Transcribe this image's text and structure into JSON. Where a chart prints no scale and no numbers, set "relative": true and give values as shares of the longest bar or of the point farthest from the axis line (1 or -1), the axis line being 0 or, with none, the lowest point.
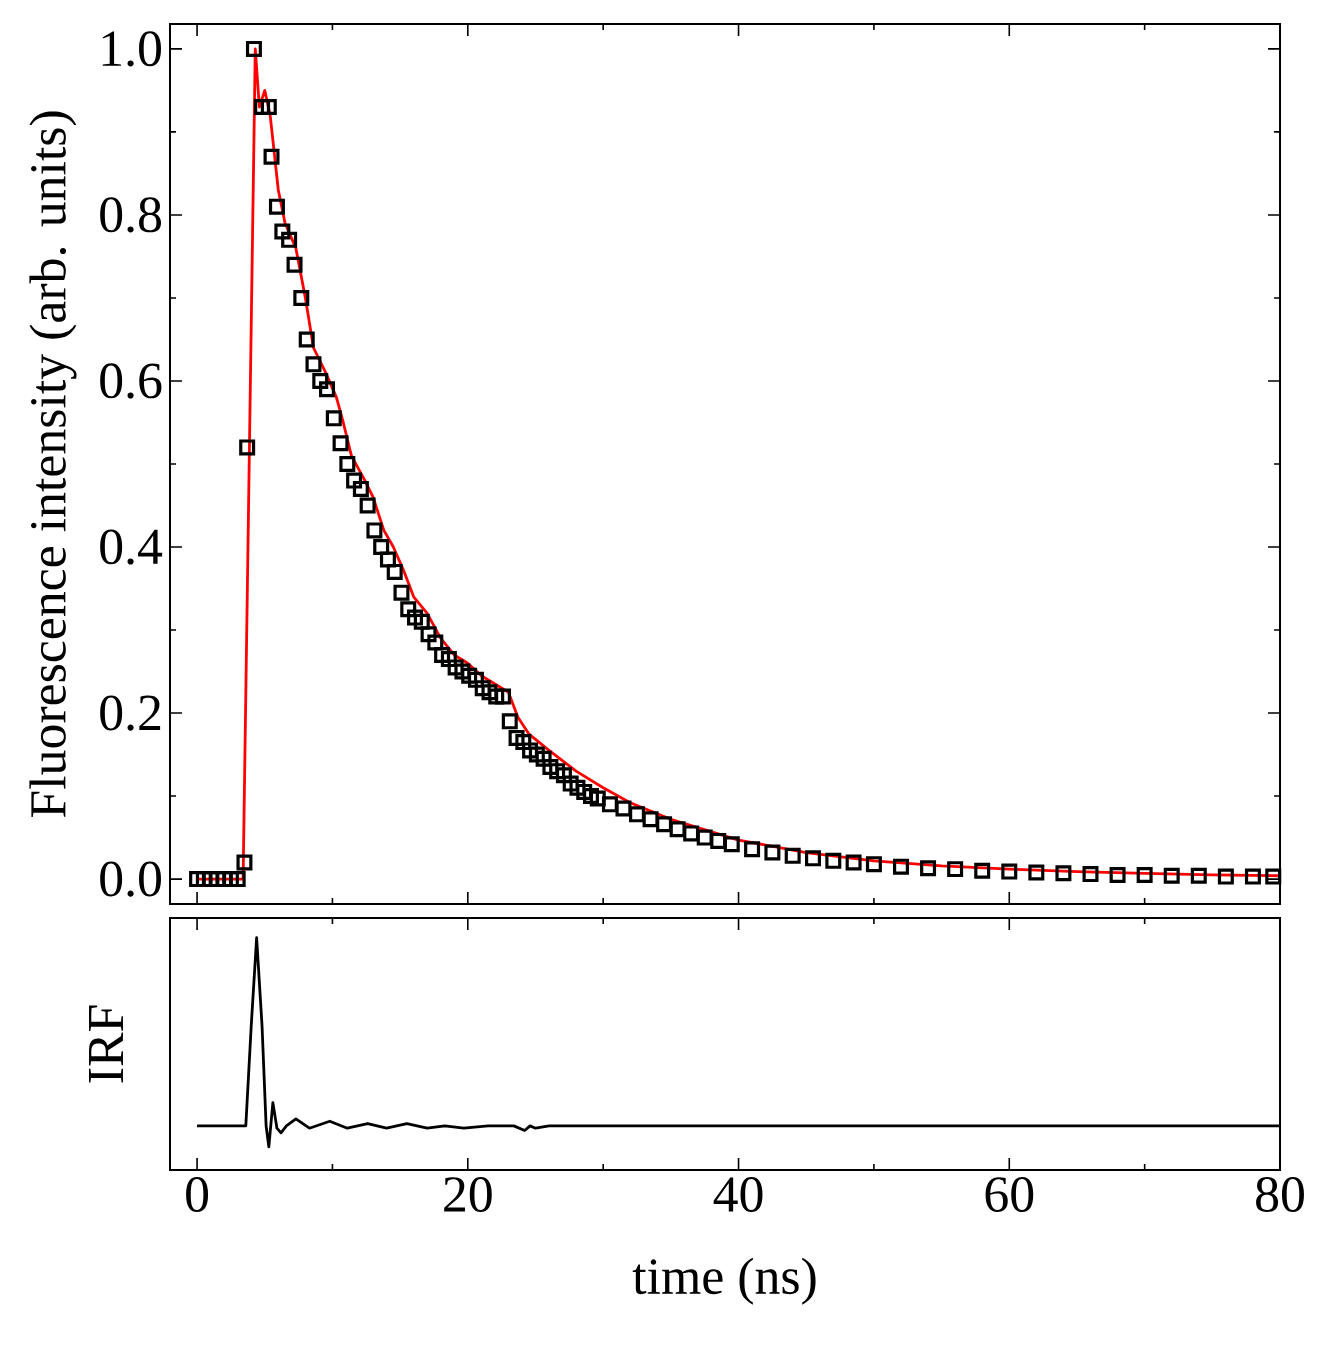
{
  "chart_data": [
    {
      "type": "scatter",
      "ylabel": "Fluorescence intensity (arb. units)",
      "xlim": [
        -2,
        80
      ],
      "xticks": [
        0,
        20,
        40,
        60,
        80
      ],
      "ylim": [
        -0.03,
        1.03
      ],
      "yticks": [
        {
          "value": 0,
          "label": "0.0"
        },
        {
          "value": 0.2,
          "label": "0.2"
        },
        {
          "value": 0.4,
          "label": "0.4"
        },
        {
          "value": 0.6,
          "label": "0.6"
        },
        {
          "value": 0.8,
          "label": "0.8"
        },
        {
          "value": 1.0,
          "label": "1.0"
        }
      ],
      "tick_labels": "y",
      "series": [
        {
          "type": "scatter",
          "color": "#000000",
          "marker": "square",
          "x": [
            0,
            0.5,
            1,
            1.5,
            2,
            2.5,
            3,
            3.5,
            3.7,
            4.2,
            4.8,
            5.3,
            5.5,
            5.9,
            6.3,
            6.8,
            7.2,
            7.7,
            8.1,
            8.6,
            9.1,
            9.6,
            10.1,
            10.6,
            11.1,
            11.6,
            12.1,
            12.6,
            13.1,
            13.6,
            14.1,
            14.6,
            15.1,
            15.6,
            16.1,
            16.6,
            17.1,
            17.6,
            18.1,
            18.6,
            19.1,
            19.6,
            20.1,
            20.6,
            21.1,
            21.6,
            22.1,
            22.6,
            23.1,
            23.6,
            24.1,
            24.6,
            25.1,
            25.6,
            26.1,
            26.6,
            27.1,
            27.6,
            28.1,
            28.6,
            29.1,
            29.6,
            30.5,
            31.5,
            32.5,
            33.5,
            34.5,
            35.5,
            36.5,
            37.5,
            38.5,
            39.5,
            41,
            42.5,
            44,
            45.5,
            47,
            48.5,
            50,
            52,
            54,
            56,
            58,
            60,
            62,
            64,
            66,
            68,
            70,
            72,
            74,
            76,
            78,
            79.5
          ],
          "values": [
            0,
            0,
            0,
            0,
            0,
            0,
            0,
            0.02,
            0.52,
            1.0,
            0.93,
            0.93,
            0.87,
            0.81,
            0.78,
            0.77,
            0.74,
            0.7,
            0.65,
            0.62,
            0.6,
            0.59,
            0.555,
            0.525,
            0.5,
            0.48,
            0.47,
            0.45,
            0.42,
            0.4,
            0.385,
            0.37,
            0.345,
            0.325,
            0.315,
            0.31,
            0.295,
            0.285,
            0.27,
            0.265,
            0.255,
            0.25,
            0.245,
            0.24,
            0.23,
            0.225,
            0.22,
            0.22,
            0.19,
            0.17,
            0.165,
            0.155,
            0.15,
            0.145,
            0.135,
            0.13,
            0.125,
            0.115,
            0.11,
            0.105,
            0.1,
            0.097,
            0.09,
            0.085,
            0.078,
            0.072,
            0.066,
            0.06,
            0.055,
            0.05,
            0.046,
            0.042,
            0.036,
            0.032,
            0.028,
            0.025,
            0.022,
            0.02,
            0.018,
            0.015,
            0.013,
            0.012,
            0.01,
            0.009,
            0.008,
            0.007,
            0.006,
            0.005,
            0.005,
            0.004,
            0.004,
            0.003,
            0.003,
            0.003
          ]
        },
        {
          "type": "line",
          "color": "#ff0000",
          "marker": "none",
          "line_style": "solid",
          "x": [
            0,
            3.4,
            4.3,
            4.6,
            5.0,
            5.4,
            6.0,
            6.5,
            7.3,
            8.0,
            8.6,
            9.5,
            10.3,
            10.8,
            11.4,
            12.4,
            13,
            13.8,
            14.5,
            15.3,
            16,
            17,
            18,
            19,
            20,
            21,
            22,
            23,
            23.7,
            24.5,
            26,
            28,
            30,
            32,
            35,
            40,
            45,
            50,
            55,
            60,
            65,
            70,
            75,
            80
          ],
          "values": [
            0,
            0,
            1.0,
            0.93,
            0.95,
            0.92,
            0.83,
            0.79,
            0.76,
            0.7,
            0.64,
            0.61,
            0.58,
            0.55,
            0.51,
            0.48,
            0.46,
            0.42,
            0.4,
            0.37,
            0.34,
            0.32,
            0.29,
            0.27,
            0.26,
            0.245,
            0.235,
            0.225,
            0.195,
            0.175,
            0.155,
            0.13,
            0.11,
            0.092,
            0.072,
            0.047,
            0.032,
            0.022,
            0.016,
            0.012,
            0.009,
            0.007,
            0.005,
            0.004
          ]
        }
      ]
    },
    {
      "type": "line",
      "relative": true,
      "xlabel": "time (ns)",
      "ylabel": "IRF",
      "xlim": [
        -2,
        80
      ],
      "xticks": [
        0,
        20,
        40,
        60,
        80
      ],
      "tick_labels": "x",
      "series": [
        {
          "color": "#000000",
          "marker": "none",
          "line_style": "solid",
          "x": [
            0,
            3.6,
            4.0,
            4.4,
            4.8,
            5.1,
            5.3,
            5.6,
            5.9,
            6.2,
            6.6,
            7.3,
            8.3,
            9.8,
            11.1,
            12.6,
            14,
            15.5,
            17,
            18.3,
            19.7,
            21.5,
            23.4,
            24.2,
            24.6,
            25,
            26,
            30,
            80
          ],
          "values": [
            0.19,
            0.19,
            0.62,
            1.0,
            0.62,
            0.19,
            0.1,
            0.29,
            0.18,
            0.16,
            0.19,
            0.22,
            0.18,
            0.21,
            0.18,
            0.2,
            0.18,
            0.2,
            0.18,
            0.19,
            0.18,
            0.19,
            0.19,
            0.17,
            0.19,
            0.18,
            0.19,
            0.19,
            0.19
          ]
        }
      ]
    }
  ]
}
